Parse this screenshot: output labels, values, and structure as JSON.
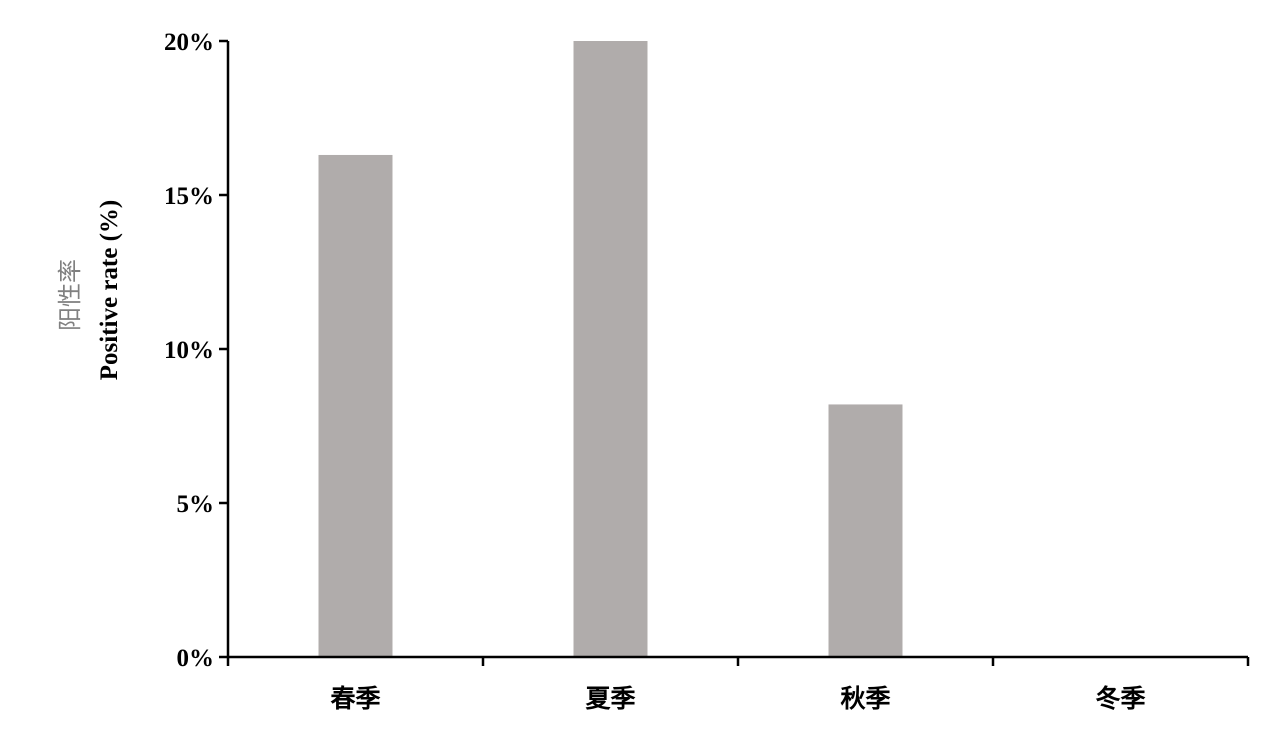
{
  "chart_data": {
    "type": "bar",
    "title": "",
    "categories": [
      "春季",
      "夏季",
      "秋季",
      "冬季"
    ],
    "values": [
      16.3,
      20.0,
      8.2,
      0
    ],
    "ylabel_cn": "阳性率",
    "ylabel": "Positive rate (%)",
    "xlabel": "",
    "ylim": [
      0,
      20
    ],
    "yticks": [
      0,
      5,
      10,
      15,
      20
    ],
    "ytick_labels": [
      "0%",
      "5%",
      "10%",
      "15%",
      "20%"
    ],
    "grid": false,
    "legend": "none",
    "colors": {
      "bar": "#b0acab",
      "axis": "#000000",
      "ylabel_cn": "#808080"
    }
  }
}
